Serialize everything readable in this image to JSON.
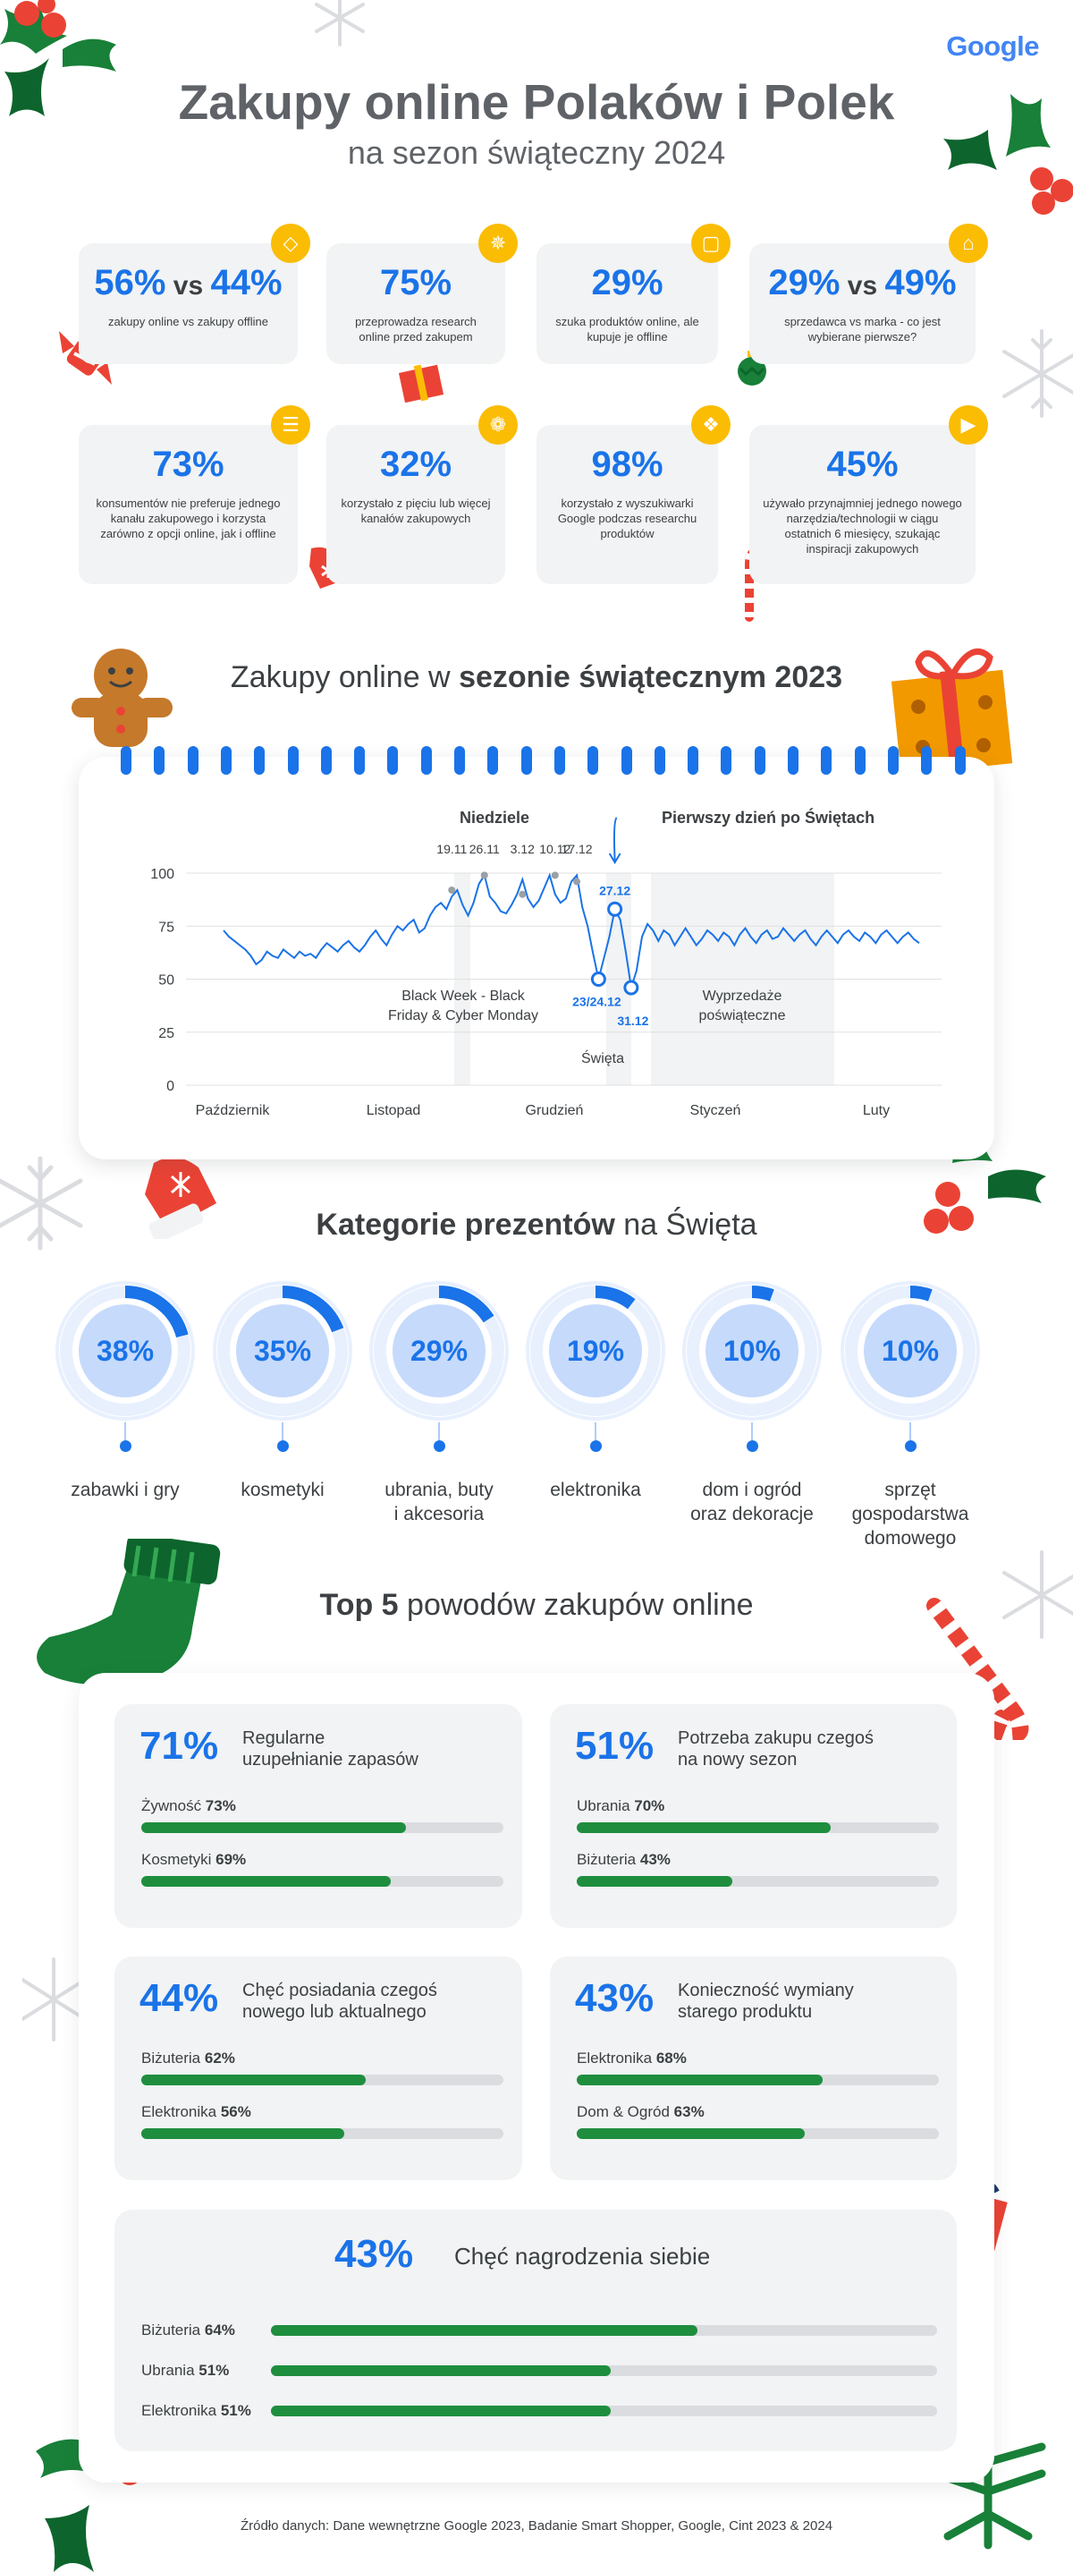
{
  "header": {
    "logo": "Google",
    "title": "Zakupy online Polaków i Polek",
    "subtitle": "na sezon świąteczny 2024"
  },
  "stats": [
    {
      "value": "56%",
      "vs": "vs",
      "value2": "44%",
      "desc": "zakupy online vs zakupy offline",
      "icon": "tag-icon"
    },
    {
      "value": "75%",
      "desc": "przeprowadza research online przed zakupem",
      "icon": "sparkle-icon"
    },
    {
      "value": "29%",
      "desc": "szuka produktów online, ale kupuje je offline",
      "icon": "shopping-bag-icon"
    },
    {
      "value": "29%",
      "vs": "vs",
      "value2": "49%",
      "desc": "sprzedawca vs marka - co jest wybierane pierwsze?",
      "icon": "store-icon"
    },
    {
      "value": "73%",
      "desc": "konsumentów nie preferuje jednego kanału zakupowego i korzysta zarówno z opcji online, jak i offline",
      "icon": "cart-icon"
    },
    {
      "value": "32%",
      "desc": "korzystało z pięciu lub więcej kanałów zakupowych",
      "icon": "basket-icon"
    },
    {
      "value": "98%",
      "desc": "korzystało z wyszukiwarki Google podczas researchu produktów",
      "icon": "shirt-icon"
    },
    {
      "value": "45%",
      "desc": "używało przynajmniej jednego nowego narzędzia/technologii w ciągu ostatnich 6 miesięcy, szukając inspiracji zakupowych",
      "icon": "video-icon"
    }
  ],
  "chart_section": {
    "title_prefix": "Zakupy online w ",
    "title_bold": "sezonie świątecznym 2023"
  },
  "chart_data": {
    "type": "line",
    "ylim": [
      0,
      100
    ],
    "yticks": [
      0,
      25,
      50,
      75,
      100
    ],
    "xtick_labels": [
      "Październik",
      "Listopad",
      "Grudzień",
      "Styczeń",
      "Luty"
    ],
    "x_range_weeks": [
      0,
      20
    ],
    "series": [
      {
        "values": [
          73,
          70,
          68,
          66,
          64,
          61,
          57,
          59,
          63,
          61,
          60,
          64,
          62,
          60,
          63,
          61,
          62,
          60,
          64,
          67,
          65,
          63,
          66,
          68,
          65,
          63,
          66,
          70,
          73,
          69,
          66,
          71,
          75,
          73,
          76,
          78,
          72,
          74,
          80,
          84,
          86,
          83,
          89,
          92,
          85,
          80,
          86,
          95,
          99,
          89,
          86,
          82,
          81,
          85,
          90,
          97,
          88,
          84,
          87,
          93,
          99,
          90,
          86,
          88,
          96,
          99,
          84,
          75,
          62,
          50,
          60,
          70,
          83,
          78,
          63,
          46,
          54,
          70,
          76,
          73,
          68,
          73,
          71,
          66,
          70,
          74,
          70,
          66,
          69,
          73,
          71,
          68,
          72,
          70,
          66,
          71,
          74,
          70,
          67,
          71,
          73,
          69,
          70,
          74,
          71,
          68,
          71,
          73,
          69,
          66,
          70,
          73,
          70,
          67,
          71,
          73,
          70,
          68,
          72,
          70,
          67,
          71,
          73,
          70,
          67,
          70,
          72,
          69,
          67
        ]
      }
    ],
    "markers": [
      {
        "label": "19.11",
        "value": 92
      },
      {
        "label": "26.11",
        "value": 99
      },
      {
        "label": "3.12",
        "value": 90
      },
      {
        "label": "10.12",
        "value": 99
      },
      {
        "label": "17.12",
        "value": 96
      },
      {
        "label": "27.12",
        "value": 83
      },
      {
        "label": "23/24.12",
        "value": 50
      },
      {
        "label": "31.12",
        "value": 46
      }
    ],
    "annotations": {
      "sundays": "Niedziele",
      "first_day": "Pierwszy dzień po Świętach",
      "black_week": "Black Week - Black Friday & Cyber Monday",
      "holidays": "Święta",
      "sales": "Wyprzedaże poświąteczne"
    }
  },
  "gifts_section": {
    "title_bold": "Kategorie prezentów",
    "title_rest": " na Święta",
    "items": [
      {
        "pct": "38%",
        "value": 38,
        "label_lines": [
          "zabawki i gry"
        ]
      },
      {
        "pct": "35%",
        "value": 35,
        "label_lines": [
          "kosmetyki"
        ]
      },
      {
        "pct": "29%",
        "value": 29,
        "label_lines": [
          "ubrania, buty",
          "i akcesoria"
        ]
      },
      {
        "pct": "19%",
        "value": 19,
        "label_lines": [
          "elektronika"
        ]
      },
      {
        "pct": "10%",
        "value": 10,
        "label_lines": [
          "dom i ogród",
          "oraz dekoracje"
        ]
      },
      {
        "pct": "10%",
        "value": 10,
        "label_lines": [
          "sprzęt",
          "gospodarstwa",
          "domowego"
        ]
      }
    ]
  },
  "reasons_section": {
    "title_bold": "Top 5",
    "title_rest": " powodów zakupów online",
    "reasons": [
      {
        "pct": "71%",
        "title_lines": [
          "Regularne",
          "uzupełnianie zapasów"
        ],
        "bars": [
          {
            "label": "Żywność",
            "pct": "73%",
            "value": 73
          },
          {
            "label": "Kosmetyki",
            "pct": "69%",
            "value": 69
          }
        ]
      },
      {
        "pct": "51%",
        "title_lines": [
          "Potrzeba zakupu czegoś",
          "na nowy sezon"
        ],
        "bars": [
          {
            "label": "Ubrania",
            "pct": "70%",
            "value": 70
          },
          {
            "label": "Biżuteria",
            "pct": "43%",
            "value": 43
          }
        ]
      },
      {
        "pct": "44%",
        "title_lines": [
          "Chęć posiadania czegoś",
          "nowego lub aktualnego"
        ],
        "bars": [
          {
            "label": "Biżuteria",
            "pct": "62%",
            "value": 62
          },
          {
            "label": "Elektronika",
            "pct": "56%",
            "value": 56
          }
        ]
      },
      {
        "pct": "43%",
        "title_lines": [
          "Konieczność wymiany",
          "starego produktu"
        ],
        "bars": [
          {
            "label": "Elektronika",
            "pct": "68%",
            "value": 68
          },
          {
            "label": "Dom & Ogród",
            "pct": "63%",
            "value": 63
          }
        ]
      },
      {
        "pct": "43%",
        "title_lines": [
          "Chęć nagrodzenia siebie"
        ],
        "bars": [
          {
            "label": "Biżuteria",
            "pct": "64%",
            "value": 64
          },
          {
            "label": "Ubrania",
            "pct": "51%",
            "value": 51
          },
          {
            "label": "Elektronika",
            "pct": "51%",
            "value": 51
          }
        ]
      }
    ]
  },
  "source": "Źródło danych: Dane wewnętrzne Google 2023, Badanie Smart Shopper, Google, Cint 2023 & 2024",
  "colors": {
    "accent": "#1a73e8",
    "bar": "#1e8e3e",
    "badge": "#fbbc04",
    "card": "#f1f3f4",
    "holly_red": "#ea4335",
    "holly_green": "#188038"
  },
  "decorations": [
    "holly-icon",
    "snowflake-icon",
    "candy-icon",
    "gift-icon",
    "ornament-icon",
    "gingerbread-icon",
    "mitten-icon",
    "stocking-icon",
    "candy-cane-icon",
    "pine-icon"
  ]
}
